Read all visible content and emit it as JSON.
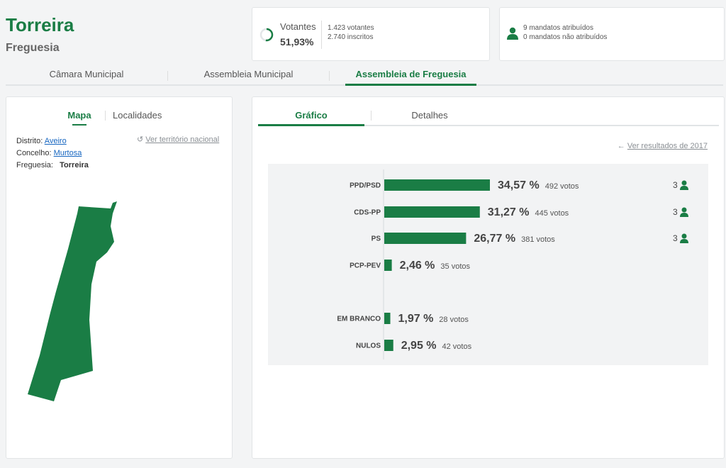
{
  "header": {
    "title": "Torreira",
    "subtitle": "Freguesia"
  },
  "turnout": {
    "label": "Votantes",
    "value": 51.93,
    "value_label": "51,93%",
    "voters": "1.423 votantes",
    "registered": "2.740 inscritos"
  },
  "mandates": {
    "assigned": "9 mandatos atribuídos",
    "unassigned": "0 mandatos não atribuídos"
  },
  "tabs": [
    "Câmara Municipal",
    "Assembleia Municipal",
    "Assembleia de Freguesia"
  ],
  "left_panel": {
    "tabs": [
      "Mapa",
      "Localidades"
    ],
    "reset_link": "Ver território nacional",
    "info": [
      {
        "label": "Distrito:",
        "value": "Aveiro"
      },
      {
        "label": "Concelho:",
        "value": "Murtosa"
      },
      {
        "label": "Freguesia:",
        "value": "Torreira"
      }
    ]
  },
  "right_panel": {
    "tabs": [
      "Gráfico",
      "Detalhes"
    ],
    "link": "Ver resultados de 2017"
  },
  "chart_data": {
    "type": "bar",
    "orientation": "horizontal",
    "color": "#1a7d45",
    "categories": [
      "PPD/PSD",
      "CDS-PP",
      "PS",
      "PCP-PEV",
      "EM BRANCO",
      "NULOS"
    ],
    "values": [
      34.57,
      31.27,
      26.77,
      2.46,
      1.97,
      2.95
    ],
    "value_labels": [
      "34,57 %",
      "31,27 %",
      "26,77 %",
      "2,46 %",
      "1,97 %",
      "2,95 %"
    ],
    "votes": [
      "492 votos",
      "445 votos",
      "381 votos",
      "35 votos",
      "28 votos",
      "42 votos"
    ],
    "seats": [
      "3",
      "3",
      "3",
      null,
      null,
      null
    ]
  }
}
